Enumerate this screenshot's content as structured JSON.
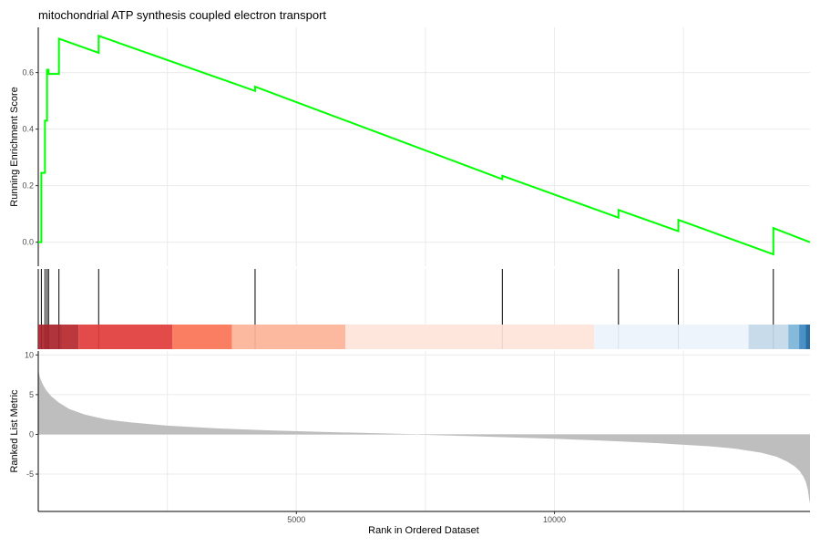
{
  "chart_data": {
    "type": "line",
    "title": "mitochondrial ATP synthesis coupled electron transport",
    "xlabel": "Rank in Ordered Dataset",
    "xlim": [
      0,
      14950
    ],
    "x_ticks": [
      5000,
      10000
    ],
    "grid": "vertical",
    "panels": {
      "enrichment": {
        "ylabel": "Running Enrichment Score",
        "ylim": [
          -0.085,
          0.76
        ],
        "y_ticks": [
          0.0,
          0.2,
          0.4,
          0.6
        ],
        "line_color": "#00ff00",
        "series": [
          {
            "x": [
              0,
              60,
              60,
              130,
              130,
              170,
              170,
              200,
              200,
              400,
              400,
              1170,
              1170,
              4200,
              4200,
              8990,
              8990,
              11240,
              11240,
              12400,
              12400,
              14240,
              14240,
              14950
            ],
            "y": [
              0.0,
              0.0,
              0.245,
              0.245,
              0.43,
              0.43,
              0.61,
              0.61,
              0.595,
              0.595,
              0.72,
              0.67,
              0.73,
              0.535,
              0.55,
              0.223,
              0.235,
              0.087,
              0.114,
              0.039,
              0.079,
              -0.043,
              0.05,
              0.0
            ]
          }
        ]
      },
      "hits": {
        "positions": [
          60,
          130,
          170,
          200,
          400,
          1170,
          4200,
          8990,
          11240,
          12400,
          14240
        ]
      },
      "color_bar": {
        "segments": [
          {
            "end": 450,
            "color": "#a8232a"
          },
          {
            "end": 780,
            "color": "#b5282b"
          },
          {
            "end": 2600,
            "color": "#e03c3b"
          },
          {
            "end": 3750,
            "color": "#fa7455"
          },
          {
            "end": 5950,
            "color": "#fdb398"
          },
          {
            "end": 10770,
            "color": "#fee4da"
          },
          {
            "end": 13760,
            "color": "#edf3fb"
          },
          {
            "end": 14530,
            "color": "#c3d8e8"
          },
          {
            "end": 14740,
            "color": "#7cb4d8"
          },
          {
            "end": 14870,
            "color": "#3b88c2"
          },
          {
            "end": 14950,
            "color": "#1b5f99"
          }
        ]
      },
      "ranked": {
        "ylabel": "Ranked List Metric",
        "ylim": [
          -9.7,
          10.5
        ],
        "y_ticks": [
          -5,
          0,
          5,
          10
        ],
        "fill_color": "#bebebe",
        "curve": {
          "x": [
            0,
            30,
            80,
            150,
            250,
            400,
            600,
            900,
            1300,
            1800,
            2500,
            3500,
            4500,
            5500,
            6500,
            7300,
            7400,
            8000,
            9000,
            10000,
            11000,
            12000,
            13000,
            13500,
            14000,
            14300,
            14500,
            14650,
            14750,
            14820,
            14870,
            14910,
            14935,
            14950
          ],
          "y": [
            8.1,
            7.2,
            6.4,
            5.6,
            4.8,
            4.0,
            3.2,
            2.5,
            1.9,
            1.5,
            1.1,
            0.75,
            0.5,
            0.32,
            0.15,
            0.03,
            -0.05,
            -0.15,
            -0.35,
            -0.55,
            -0.8,
            -1.1,
            -1.5,
            -1.8,
            -2.3,
            -2.8,
            -3.4,
            -4.0,
            -4.6,
            -5.3,
            -6.0,
            -7.0,
            -8.2,
            -8.7
          ]
        }
      }
    }
  }
}
